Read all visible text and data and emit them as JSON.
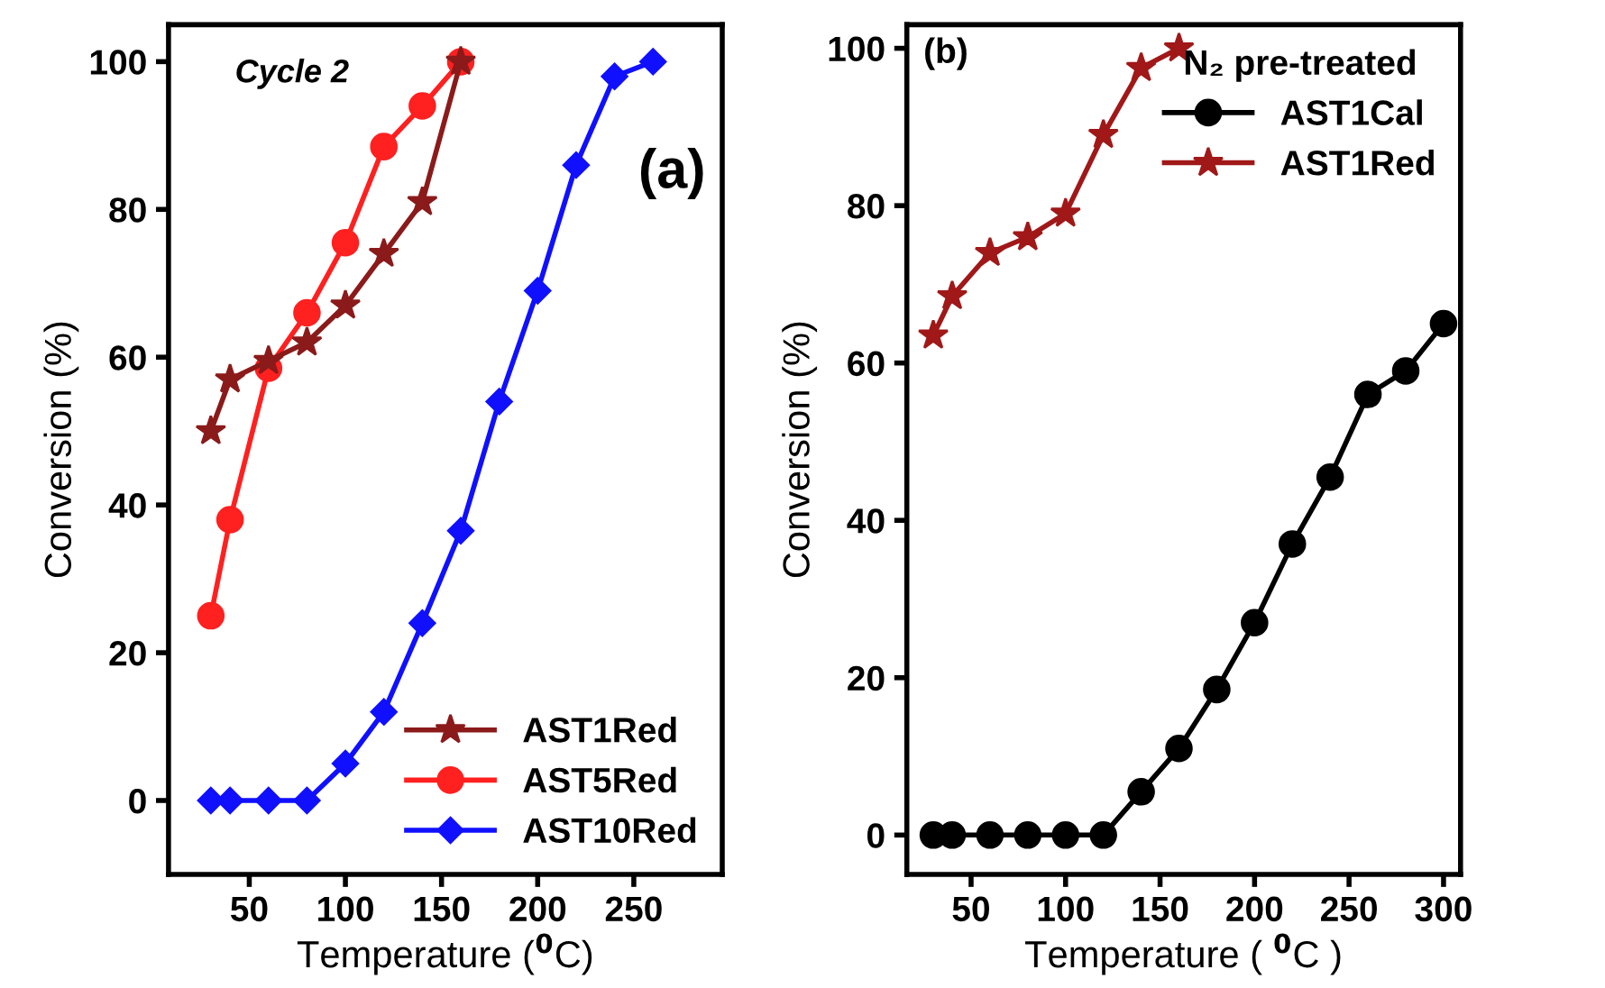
{
  "chart_data": [
    {
      "type": "line",
      "xlabel": "Temperature ($^{0}$C)",
      "ylabel": "Conversion (%)",
      "annotations": [
        "Cycle 2",
        "(a)"
      ],
      "xlim": [
        8,
        296
      ],
      "ylim": [
        -10,
        105
      ],
      "xticks": [
        50,
        100,
        150,
        200,
        250
      ],
      "yticks": [
        0,
        20,
        40,
        60,
        80,
        100
      ],
      "grid": false,
      "legend": "bottom right",
      "series": [
        {
          "name": "AST1Red",
          "color": "#8b1a1a",
          "marker": "star",
          "x": [
            30,
            40,
            60,
            80,
            100,
            120,
            140,
            160
          ],
          "values": [
            50,
            57,
            59.5,
            62,
            67,
            74,
            81,
            100
          ]
        },
        {
          "name": "AST5Red",
          "color": "#ff2020",
          "marker": "circle",
          "x": [
            30,
            40,
            60,
            80,
            100,
            120,
            140,
            160
          ],
          "values": [
            25,
            38,
            58.5,
            66,
            75.5,
            88.5,
            94,
            100
          ]
        },
        {
          "name": "AST10Red",
          "color": "#1010ff",
          "marker": "diamond",
          "x": [
            30,
            40,
            60,
            80,
            100,
            120,
            140,
            160,
            180,
            200,
            220,
            240,
            260
          ],
          "values": [
            0,
            0,
            0,
            0,
            5,
            12,
            24,
            36.5,
            54,
            69,
            86,
            98,
            100
          ]
        }
      ]
    },
    {
      "type": "line",
      "xlabel": "Temperature ( $^{0}$C )",
      "ylabel": "Conversion (%)",
      "annotations": [
        "(b)"
      ],
      "legend_title": "N₂ pre-treated",
      "xlim": [
        16,
        309
      ],
      "ylim": [
        -5,
        103
      ],
      "xticks": [
        50,
        100,
        150,
        200,
        250,
        300
      ],
      "yticks": [
        0,
        20,
        40,
        60,
        80,
        100
      ],
      "grid": false,
      "legend": "top right",
      "series": [
        {
          "name": "AST1Cal",
          "color": "#000000",
          "marker": "circle",
          "x": [
            30,
            40,
            60,
            80,
            100,
            120,
            140,
            160,
            180,
            200,
            220,
            240,
            260,
            280,
            300
          ],
          "values": [
            0,
            0,
            0,
            0,
            0,
            0,
            5.5,
            11,
            18.5,
            27,
            37,
            45.5,
            56,
            59,
            65
          ]
        },
        {
          "name": "AST1Red",
          "color": "#a01818",
          "marker": "star",
          "x": [
            30,
            40,
            60,
            80,
            100,
            120,
            140,
            160
          ],
          "values": [
            63.5,
            68.5,
            74,
            76,
            79,
            89,
            97.5,
            100
          ]
        }
      ]
    }
  ]
}
